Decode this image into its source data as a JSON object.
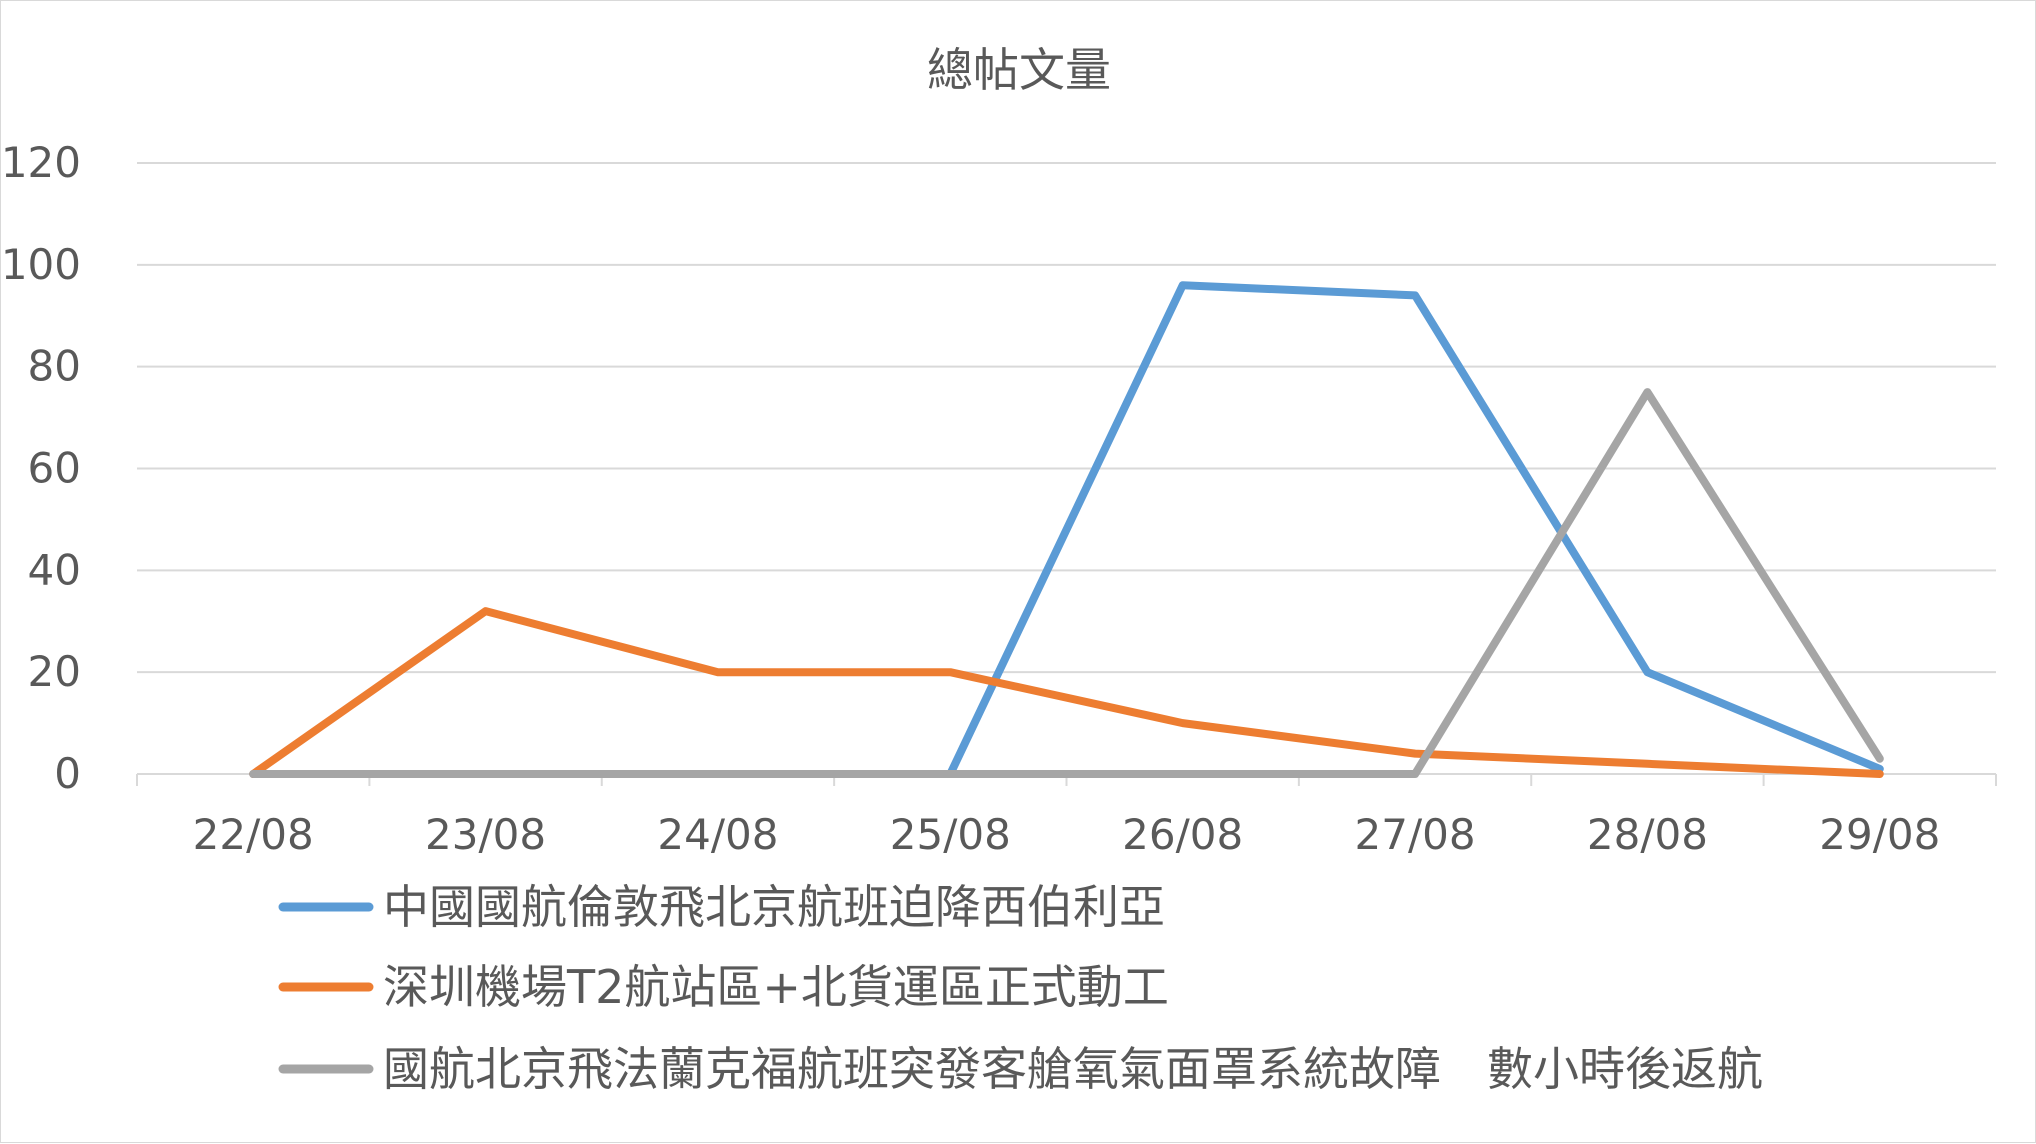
{
  "chart_data": {
    "type": "line",
    "title": "總帖文量",
    "xlabel": "",
    "ylabel": "",
    "categories": [
      "22/08",
      "23/08",
      "24/08",
      "25/08",
      "26/08",
      "27/08",
      "28/08",
      "29/08"
    ],
    "ylim": [
      0,
      120
    ],
    "yticks": [
      "0",
      "20",
      "40",
      "60",
      "80",
      "100",
      "120"
    ],
    "grid": true,
    "legend_position": "bottom",
    "series": [
      {
        "name": "中國國航倫敦飛北京航班迫降西伯利亞",
        "color": "#5b9bd5",
        "values": [
          0,
          0,
          0,
          0,
          96,
          94,
          20,
          1
        ]
      },
      {
        "name": "深圳機場T2航站區+北貨運區正式動工",
        "color": "#ed7d31",
        "values": [
          0,
          32,
          20,
          20,
          10,
          4,
          2,
          0
        ]
      },
      {
        "name": "國航北京飛法蘭克福航班突發客艙氧氣面罩系統故障　數小時後返航",
        "color": "#a5a5a5",
        "values": [
          0,
          0,
          0,
          0,
          0,
          0,
          75,
          3
        ]
      }
    ]
  }
}
